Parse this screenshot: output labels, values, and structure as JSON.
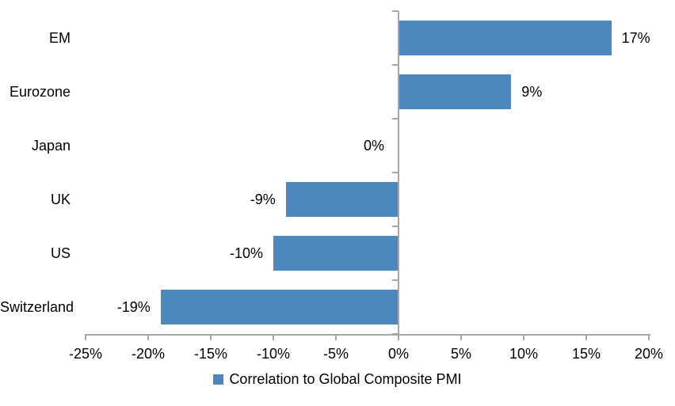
{
  "chart_data": {
    "type": "bar",
    "orientation": "horizontal",
    "title": "",
    "categories": [
      "EM",
      "Eurozone",
      "Japan",
      "UK",
      "US",
      "Switzerland"
    ],
    "series": [
      {
        "name": "Correlation to Global Composite PMI",
        "values": [
          17,
          9,
          0,
          -9,
          -10,
          -19
        ],
        "value_labels": [
          "17%",
          "9%",
          "0%",
          "-9%",
          "-10%",
          "-19%"
        ]
      }
    ],
    "xlim": [
      -25,
      20
    ],
    "x_ticks": [
      -25,
      -20,
      -15,
      -10,
      -5,
      0,
      5,
      10,
      15,
      20
    ],
    "x_tick_labels": [
      "-25%",
      "-20%",
      "-15%",
      "-10%",
      "-5%",
      "0%",
      "5%",
      "10%",
      "15%",
      "20%"
    ],
    "grid": false,
    "legend_position": "bottom-center",
    "legend": "Correlation to Global Composite PMI",
    "colors": {
      "bar": "#4E86BE",
      "axis": "#A6A6A6",
      "text": "#000000",
      "background": "#FFFFFF"
    }
  }
}
